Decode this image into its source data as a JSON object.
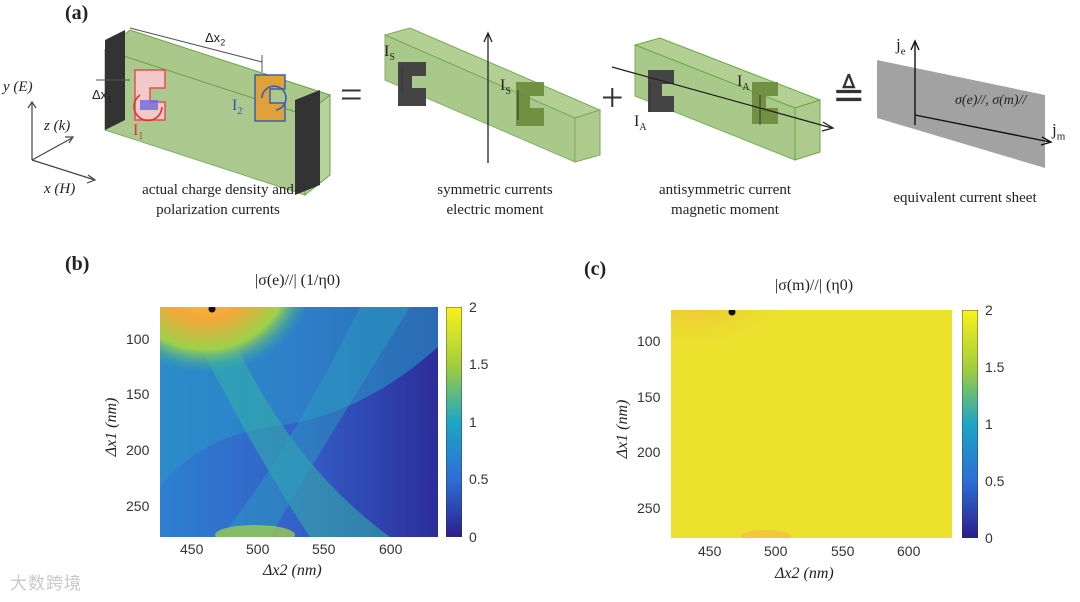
{
  "panel_a": {
    "label": "(a)",
    "captions": {
      "actual": [
        "actual charge density and",
        "polarization currents"
      ],
      "symmetric": [
        "symmetric currents",
        "electric moment"
      ],
      "antisymmetric": [
        "antisymmetric current",
        "magnetic moment"
      ],
      "sheet": "equivalent current sheet"
    },
    "axes": {
      "y": "y (E)",
      "z": "z (k)",
      "x": "x (H)"
    },
    "labels": {
      "dx2": "Δx",
      "dx2_sub": "2",
      "dx1": "Δx",
      "dx1_sub": "1",
      "i1": "I",
      "i1_sub": "1",
      "i2": "I",
      "i2_sub": "2",
      "is": "I",
      "is_sub": "S",
      "ia": "I",
      "ia_sub": "A",
      "je": "j",
      "je_sub": "e",
      "jm": "j",
      "jm_sub": "m",
      "sigma": "σ(e)//, σ(m)//"
    },
    "operators": {
      "equals": "=",
      "plus": "+",
      "defeq": "≜"
    }
  },
  "panel_b": {
    "label": "(b)",
    "title": "|σ(e)//| (1/η0)",
    "xlabel": "Δx2 (nm)",
    "ylabel": "Δx1 (nm)"
  },
  "panel_c": {
    "label": "(c)",
    "title": "|σ(m)//| (η0)",
    "xlabel": "Δx2 (nm)",
    "ylabel": "Δx1 (nm)"
  },
  "chart_data": [
    {
      "type": "heatmap",
      "title": "|σ(e)//| (1/η0)",
      "xlabel": "Δx2 (nm)",
      "ylabel": "Δx1 (nm)",
      "xlim": [
        420,
        635
      ],
      "ylim": [
        280,
        75
      ],
      "xticks": [
        450,
        500,
        550,
        600
      ],
      "yticks": [
        100,
        150,
        200,
        250
      ],
      "colorbar": {
        "range": [
          0,
          2
        ],
        "ticks": [
          "0",
          "0.5",
          "1",
          "1.5",
          "2"
        ]
      },
      "marker": {
        "x": 460,
        "y": 76
      },
      "description_values": {
        "max_region": [
          480,
          110
        ],
        "max_value": 1.9
      }
    },
    {
      "type": "heatmap",
      "title": "|σ(m)//| (η0)",
      "xlabel": "Δx2 (nm)",
      "ylabel": "Δx1 (nm)",
      "xlim": [
        420,
        635
      ],
      "ylim": [
        280,
        75
      ],
      "xticks": [
        450,
        500,
        550,
        600
      ],
      "yticks": [
        100,
        150,
        200,
        250
      ],
      "colorbar": {
        "range": [
          0,
          2
        ],
        "ticks": [
          "0",
          "0.5",
          "1",
          "1.5",
          "2"
        ]
      },
      "marker": {
        "x": 465,
        "y": 76
      },
      "description_values": {
        "background_value": 1.75,
        "peak_value": 1.9
      }
    }
  ],
  "watermark": "大数跨境"
}
